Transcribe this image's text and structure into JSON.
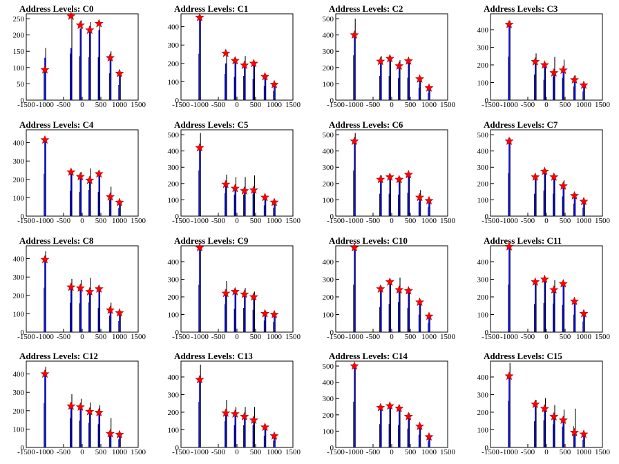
{
  "figure": {
    "panel_title_prefix": "Address Levels: ",
    "x_ticks": [
      "-1500",
      "-1000",
      "-500",
      "0",
      "500",
      "1000",
      "1500"
    ],
    "colors": {
      "background": "#ffffff",
      "hist": "#000000",
      "hist_overlay": "#0000ff",
      "marker": "#ff0000",
      "frame": "#000000"
    }
  },
  "chart_data": [
    {
      "type": "bar",
      "title": "Address Levels: C0",
      "xlim": [
        -1500,
        1500
      ],
      "ylim": [
        0,
        265
      ],
      "yticks": [
        0,
        50,
        100,
        150,
        200,
        250
      ],
      "peaks_x": [
        -1000,
        -300,
        -50,
        200,
        450,
        750,
        1000
      ],
      "peaks_y": [
        93,
        258,
        230,
        215,
        235,
        130,
        82
      ],
      "hist_black": [
        160,
        260,
        245,
        240,
        240,
        150,
        85
      ],
      "hist_blue": [
        130,
        160,
        220,
        215,
        215,
        140,
        80
      ]
    },
    {
      "type": "bar",
      "title": "Address Levels: C1",
      "xlim": [
        -1500,
        1500
      ],
      "ylim": [
        0,
        470
      ],
      "yticks": [
        0,
        100,
        200,
        300,
        400
      ],
      "peaks_x": [
        -1000,
        -300,
        -50,
        200,
        450,
        750,
        1000
      ],
      "peaks_y": [
        450,
        255,
        215,
        190,
        200,
        128,
        85
      ],
      "hist_black": [
        460,
        260,
        230,
        240,
        210,
        140,
        90
      ],
      "hist_blue": [
        440,
        200,
        210,
        190,
        195,
        125,
        80
      ]
    },
    {
      "type": "bar",
      "title": "Address Levels: C2",
      "xlim": [
        -1500,
        1500
      ],
      "ylim": [
        0,
        530
      ],
      "yticks": [
        0,
        100,
        200,
        300,
        400,
        500
      ],
      "peaks_x": [
        -1000,
        -300,
        -50,
        200,
        450,
        750,
        1000
      ],
      "peaks_y": [
        400,
        238,
        255,
        210,
        240,
        130,
        75
      ],
      "hist_black": [
        500,
        270,
        270,
        245,
        250,
        140,
        80
      ],
      "hist_blue": [
        390,
        230,
        250,
        205,
        235,
        125,
        70
      ]
    },
    {
      "type": "bar",
      "title": "Address Levels: C3",
      "xlim": [
        -1500,
        1500
      ],
      "ylim": [
        0,
        490
      ],
      "yticks": [
        0,
        100,
        200,
        300,
        400
      ],
      "peaks_x": [
        -1000,
        -300,
        -50,
        200,
        450,
        750,
        1000
      ],
      "peaks_y": [
        430,
        218,
        200,
        155,
        170,
        115,
        85
      ],
      "hist_black": [
        450,
        265,
        210,
        245,
        230,
        140,
        90
      ],
      "hist_blue": [
        420,
        210,
        195,
        150,
        165,
        110,
        80
      ]
    },
    {
      "type": "bar",
      "title": "Address Levels: C4",
      "xlim": [
        -1500,
        1500
      ],
      "ylim": [
        0,
        470
      ],
      "yticks": [
        0,
        100,
        200,
        300,
        400
      ],
      "peaks_x": [
        -1000,
        -300,
        -50,
        200,
        450,
        750,
        1000
      ],
      "peaks_y": [
        415,
        240,
        215,
        195,
        230,
        105,
        75
      ],
      "hist_black": [
        420,
        250,
        240,
        260,
        240,
        160,
        80
      ],
      "hist_blue": [
        410,
        235,
        210,
        190,
        225,
        100,
        70
      ]
    },
    {
      "type": "bar",
      "title": "Address Levels: C5",
      "xlim": [
        -1500,
        1500
      ],
      "ylim": [
        0,
        530
      ],
      "yticks": [
        0,
        100,
        200,
        300,
        400,
        500
      ],
      "peaks_x": [
        -1000,
        -300,
        -50,
        200,
        450,
        750,
        1000
      ],
      "peaks_y": [
        420,
        195,
        170,
        155,
        160,
        115,
        85
      ],
      "hist_black": [
        510,
        255,
        240,
        240,
        250,
        120,
        90
      ],
      "hist_blue": [
        410,
        190,
        165,
        150,
        155,
        110,
        80
      ]
    },
    {
      "type": "bar",
      "title": "Address Levels: C6",
      "xlim": [
        -1500,
        1500
      ],
      "ylim": [
        0,
        530
      ],
      "yticks": [
        0,
        100,
        200,
        300,
        400,
        500
      ],
      "peaks_x": [
        -1000,
        -300,
        -50,
        200,
        450,
        750,
        1000
      ],
      "peaks_y": [
        460,
        225,
        240,
        225,
        255,
        115,
        95
      ],
      "hist_black": [
        510,
        250,
        250,
        240,
        260,
        160,
        100
      ],
      "hist_blue": [
        450,
        220,
        235,
        220,
        250,
        110,
        90
      ]
    },
    {
      "type": "bar",
      "title": "Address Levels: C7",
      "xlim": [
        -1500,
        1500
      ],
      "ylim": [
        0,
        530
      ],
      "yticks": [
        0,
        100,
        200,
        300,
        400,
        500
      ],
      "peaks_x": [
        -1000,
        -300,
        -50,
        200,
        450,
        750,
        1000
      ],
      "peaks_y": [
        460,
        240,
        275,
        240,
        185,
        125,
        90
      ],
      "hist_black": [
        480,
        250,
        285,
        250,
        220,
        140,
        95
      ],
      "hist_blue": [
        450,
        235,
        270,
        235,
        180,
        120,
        85
      ]
    },
    {
      "type": "bar",
      "title": "Address Levels: C8",
      "xlim": [
        -1500,
        1500
      ],
      "ylim": [
        0,
        470
      ],
      "yticks": [
        0,
        100,
        200,
        300,
        400
      ],
      "peaks_x": [
        -1000,
        -300,
        -50,
        200,
        450,
        750,
        1000
      ],
      "peaks_y": [
        395,
        245,
        240,
        220,
        235,
        120,
        105
      ],
      "hist_black": [
        440,
        290,
        285,
        295,
        240,
        160,
        110
      ],
      "hist_blue": [
        385,
        240,
        235,
        215,
        230,
        115,
        100
      ]
    },
    {
      "type": "bar",
      "title": "Address Levels: C9",
      "xlim": [
        -1500,
        1500
      ],
      "ylim": [
        0,
        490
      ],
      "yticks": [
        0,
        100,
        200,
        300,
        400
      ],
      "peaks_x": [
        -1000,
        -300,
        -50,
        200,
        450,
        750,
        1000
      ],
      "peaks_y": [
        480,
        220,
        230,
        215,
        200,
        105,
        100
      ],
      "hist_black": [
        490,
        290,
        240,
        250,
        230,
        120,
        105
      ],
      "hist_blue": [
        470,
        215,
        225,
        210,
        195,
        100,
        95
      ]
    },
    {
      "type": "bar",
      "title": "Address Levels: C10",
      "xlim": [
        -1500,
        1500
      ],
      "ylim": [
        0,
        490
      ],
      "yticks": [
        0,
        100,
        200,
        300,
        400
      ],
      "peaks_x": [
        -1000,
        -300,
        -50,
        200,
        450,
        750,
        1000
      ],
      "peaks_y": [
        480,
        245,
        285,
        240,
        235,
        170,
        90
      ],
      "hist_black": [
        490,
        260,
        290,
        310,
        250,
        180,
        95
      ],
      "hist_blue": [
        470,
        240,
        280,
        235,
        230,
        165,
        85
      ]
    },
    {
      "type": "bar",
      "title": "Address Levels: C11",
      "xlim": [
        -1500,
        1500
      ],
      "ylim": [
        0,
        490
      ],
      "yticks": [
        0,
        100,
        200,
        300,
        400
      ],
      "peaks_x": [
        -1000,
        -300,
        -50,
        200,
        450,
        750,
        1000
      ],
      "peaks_y": [
        485,
        285,
        300,
        240,
        275,
        175,
        105
      ],
      "hist_black": [
        490,
        290,
        300,
        295,
        280,
        180,
        110
      ],
      "hist_blue": [
        475,
        280,
        295,
        235,
        270,
        170,
        100
      ]
    },
    {
      "type": "bar",
      "title": "Address Levels: C12",
      "xlim": [
        -1500,
        1500
      ],
      "ylim": [
        0,
        470
      ],
      "yticks": [
        0,
        100,
        200,
        300,
        400
      ],
      "peaks_x": [
        -1000,
        -300,
        -50,
        200,
        450,
        750,
        1000
      ],
      "peaks_y": [
        400,
        225,
        220,
        195,
        190,
        75,
        70
      ],
      "hist_black": [
        440,
        290,
        265,
        245,
        230,
        160,
        80
      ],
      "hist_blue": [
        395,
        220,
        215,
        190,
        185,
        70,
        65
      ]
    },
    {
      "type": "bar",
      "title": "Address Levels: C13",
      "xlim": [
        -1500,
        1500
      ],
      "ylim": [
        0,
        490
      ],
      "yticks": [
        0,
        100,
        200,
        300,
        400
      ],
      "peaks_x": [
        -1000,
        -300,
        -50,
        200,
        450,
        750,
        1000
      ],
      "peaks_y": [
        385,
        195,
        190,
        175,
        155,
        115,
        65
      ],
      "hist_black": [
        470,
        270,
        230,
        230,
        230,
        120,
        70
      ],
      "hist_blue": [
        380,
        190,
        185,
        170,
        150,
        110,
        60
      ]
    },
    {
      "type": "bar",
      "title": "Address Levels: C14",
      "xlim": [
        -1500,
        1500
      ],
      "ylim": [
        0,
        530
      ],
      "yticks": [
        0,
        100,
        200,
        300,
        400,
        500
      ],
      "peaks_x": [
        -1000,
        -300,
        -50,
        200,
        450,
        750,
        1000
      ],
      "peaks_y": [
        500,
        245,
        255,
        240,
        190,
        130,
        65
      ],
      "hist_black": [
        510,
        260,
        260,
        250,
        210,
        140,
        70
      ],
      "hist_blue": [
        490,
        240,
        250,
        235,
        185,
        125,
        60
      ]
    },
    {
      "type": "bar",
      "title": "Address Levels: C15",
      "xlim": [
        -1500,
        1500
      ],
      "ylim": [
        0,
        490
      ],
      "yticks": [
        0,
        100,
        200,
        300,
        400
      ],
      "peaks_x": [
        -1000,
        -300,
        -50,
        200,
        450,
        750,
        1000
      ],
      "peaks_y": [
        405,
        245,
        220,
        175,
        155,
        85,
        75
      ],
      "hist_black": [
        480,
        270,
        280,
        240,
        215,
        220,
        80
      ],
      "hist_blue": [
        400,
        240,
        215,
        170,
        150,
        80,
        70
      ]
    }
  ]
}
